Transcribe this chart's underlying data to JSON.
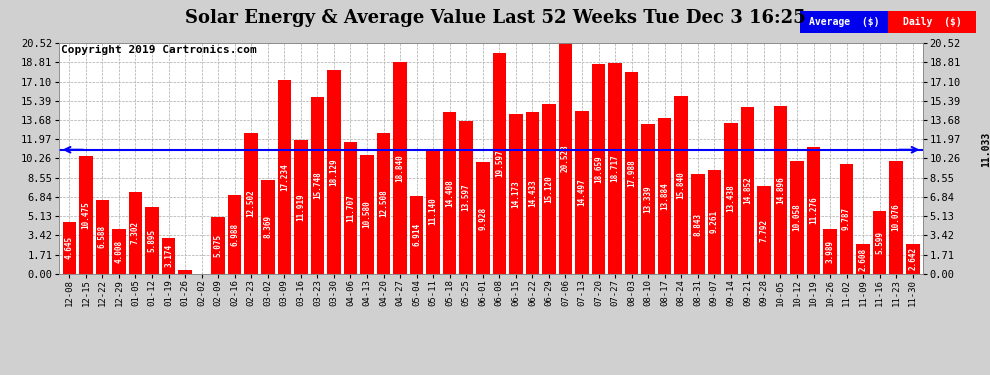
{
  "title": "Solar Energy & Average Value Last 52 Weeks Tue Dec 3 16:25",
  "copyright": "Copyright 2019 Cartronics.com",
  "average_line": 11.033,
  "average_label": "11.033",
  "bar_color": "#ff0000",
  "average_line_color": "#0000ff",
  "background_color": "#d0d0d0",
  "plot_bg_color": "#ffffff",
  "grid_color": "#aaaaaa",
  "ytick_values": [
    0.0,
    1.71,
    3.42,
    5.13,
    6.84,
    8.55,
    10.26,
    11.97,
    13.68,
    15.39,
    17.1,
    18.81,
    20.52
  ],
  "legend_avg_color": "#0000ee",
  "legend_daily_color": "#ff0000",
  "legend_avg_text": "Average  ($)",
  "legend_daily_text": "Daily  ($)",
  "title_fontsize": 13,
  "copyright_fontsize": 8,
  "ytick_fontsize": 7.5,
  "xtick_fontsize": 6.5,
  "bar_label_fontsize": 5.5,
  "categories": [
    "12-08",
    "12-15",
    "12-22",
    "12-29",
    "01-05",
    "01-12",
    "01-19",
    "01-26",
    "02-02",
    "02-09",
    "02-16",
    "02-23",
    "03-02",
    "03-09",
    "03-16",
    "03-23",
    "03-30",
    "04-06",
    "04-13",
    "04-20",
    "04-27",
    "05-04",
    "05-11",
    "05-18",
    "05-25",
    "06-01",
    "06-08",
    "06-15",
    "06-22",
    "06-29",
    "07-06",
    "07-13",
    "07-20",
    "07-27",
    "08-03",
    "08-10",
    "08-17",
    "08-24",
    "08-31",
    "09-07",
    "09-14",
    "09-21",
    "09-28",
    "10-05",
    "10-12",
    "10-19",
    "10-26",
    "11-02",
    "11-09",
    "11-16",
    "11-23",
    "11-30"
  ],
  "values": [
    4.645,
    10.475,
    6.588,
    4.008,
    7.302,
    5.895,
    3.174,
    0.332,
    0.0,
    5.075,
    6.988,
    12.502,
    8.369,
    17.234,
    11.919,
    15.748,
    18.129,
    11.707,
    10.58,
    12.508,
    18.84,
    6.914,
    11.14,
    14.408,
    13.597,
    9.928,
    19.597,
    14.173,
    14.433,
    15.12,
    20.523,
    14.497,
    18.659,
    18.717,
    17.988,
    13.339,
    13.884,
    15.84,
    8.843,
    9.261,
    13.438,
    14.852,
    7.792,
    14.896,
    10.058,
    11.276,
    3.989,
    9.787,
    2.608,
    5.599,
    10.076,
    2.642
  ]
}
